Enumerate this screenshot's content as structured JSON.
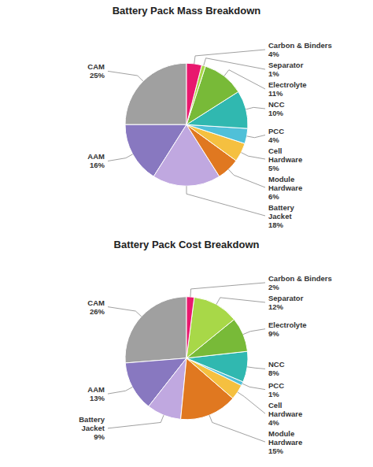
{
  "chart_data": [
    {
      "type": "pie",
      "title": "Battery Pack Mass Breakdown",
      "categories": [
        "CAM",
        "AAM",
        "Battery\nJacket",
        "Module\nHardware",
        "Cell\nHardware",
        "PCC",
        "NCC",
        "Electrolyte",
        "Separator",
        "Carbon & Binders"
      ],
      "values": [
        25,
        16,
        18,
        6,
        5,
        4,
        10,
        11,
        1,
        4
      ],
      "value_labels": [
        "25%",
        "16%",
        "18%",
        "6%",
        "5%",
        "4%",
        "10%",
        "11%",
        "1%",
        "4%"
      ],
      "colors": [
        "#a0a0a0",
        "#8878c0",
        "#c0a8e0",
        "#e07820",
        "#f5c040",
        "#50c0d8",
        "#30b8b0",
        "#78ba38",
        "#a8d848",
        "#e8186e"
      ],
      "data_labels": true
    },
    {
      "type": "pie",
      "title": "Battery Pack Cost Breakdown",
      "categories": [
        "CAM",
        "AAM",
        "Battery\nJacket",
        "Module\nHardware",
        "Cell\nHardware",
        "PCC",
        "NCC",
        "Electrolyte",
        "Separator",
        "Carbon & Binders"
      ],
      "values": [
        26,
        13,
        9,
        15,
        4,
        1,
        8,
        9,
        12,
        2
      ],
      "value_labels": [
        "26%",
        "13%",
        "9%",
        "15%",
        "4%",
        "1%",
        "8%",
        "9%",
        "12%",
        "2%"
      ],
      "colors": [
        "#a0a0a0",
        "#8878c0",
        "#c0a8e0",
        "#e07820",
        "#f5c040",
        "#50c0d8",
        "#30b8b0",
        "#78ba38",
        "#a8d848",
        "#e8186e"
      ],
      "data_labels": true
    }
  ]
}
